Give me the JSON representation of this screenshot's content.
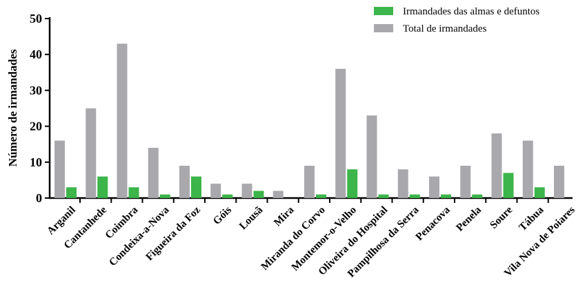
{
  "chart_data": {
    "type": "bar",
    "title": "",
    "xlabel": "",
    "ylabel": "Número de irmandades",
    "ylim": [
      0,
      50
    ],
    "yticks": [
      0,
      10,
      20,
      30,
      40,
      50
    ],
    "grid": false,
    "legend_position": "top-right",
    "categories": [
      "Arganil",
      "Cantanhede",
      "Coimbra",
      "Condeixa-a-Nova",
      "Figueira da Foz",
      "Góis",
      "Lousã",
      "Mira",
      "Miranda do Corvo",
      "Montemor-o-Velho",
      "Oliveira do Hospital",
      "Pampilhosa da Serra",
      "Penacova",
      "Penela",
      "Soure",
      "Tábua",
      "Vila Nova de Poiares"
    ],
    "series": [
      {
        "name": "Total de irmandades",
        "color": "#a9a9ad",
        "values": [
          16,
          25,
          43,
          14,
          9,
          4,
          4,
          2,
          9,
          36,
          23,
          8,
          6,
          9,
          18,
          16,
          9
        ]
      },
      {
        "name": "Irmandades das almas e defuntos",
        "color": "#3cb54a",
        "values": [
          3,
          6,
          3,
          1,
          6,
          1,
          2,
          0,
          1,
          8,
          1,
          1,
          1,
          1,
          7,
          3,
          0
        ]
      }
    ],
    "legend_order": [
      "Irmandades das almas e defuntos",
      "Total de irmandades"
    ]
  }
}
